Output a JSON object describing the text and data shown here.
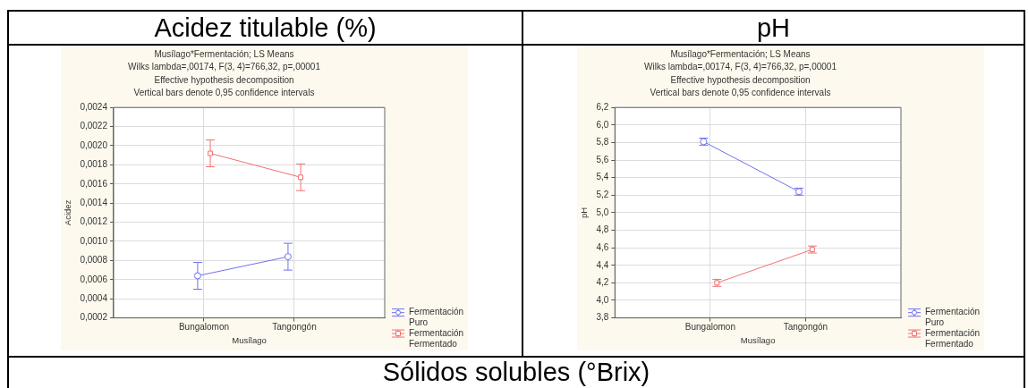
{
  "chart_data": [
    {
      "type": "line",
      "title": "Acidez titulable (%)",
      "subtitle": "Musílago*Fermentación; LS Means\nWilks lambda=,00174, F(3, 4)=766,32, p=,00001\nEffective hypothesis decomposition\nVertical bars denote 0,95 confidence intervals",
      "xlabel": "Musílago",
      "ylabel": "Acidez",
      "categories": [
        "Bungalomon",
        "Tangongón"
      ],
      "series": [
        {
          "name": "Fermentación Puro",
          "color": "#7070f2",
          "marker": "circle",
          "values": [
            0.00064,
            0.00084
          ],
          "errors": [
            0.00014,
            0.00014
          ]
        },
        {
          "name": "Fermentación Fermentado",
          "color": "#f27070",
          "marker": "square",
          "values": [
            0.00192,
            0.00167
          ],
          "errors": [
            0.00014,
            0.00014
          ]
        }
      ],
      "ylim": [
        0.0002,
        0.0024
      ],
      "yticks": [
        {
          "value": 0.0002,
          "label": "0,0002"
        },
        {
          "value": 0.0004,
          "label": "0,0004"
        },
        {
          "value": 0.0006,
          "label": "0,0006"
        },
        {
          "value": 0.0008,
          "label": "0,0008"
        },
        {
          "value": 0.001,
          "label": "0,0010"
        },
        {
          "value": 0.0012,
          "label": "0,0012"
        },
        {
          "value": 0.0014,
          "label": "0,0014"
        },
        {
          "value": 0.0016,
          "label": "0,0016"
        },
        {
          "value": 0.0018,
          "label": "0,0018"
        },
        {
          "value": 0.002,
          "label": "0,0020"
        },
        {
          "value": 0.0022,
          "label": "0,0022"
        },
        {
          "value": 0.0024,
          "label": "0,0024"
        }
      ],
      "grid": true,
      "legend": "bottom right"
    },
    {
      "type": "line",
      "title": "pH",
      "subtitle": "Musílago*Fermentación; LS Means\nWilks lambda=,00174, F(3, 4)=766,32, p=,00001\nEffective hypothesis decomposition\nVertical bars denote 0,95 confidence intervals",
      "xlabel": "Musílago",
      "ylabel": "pH",
      "categories": [
        "Bungalomon",
        "Tangongón"
      ],
      "series": [
        {
          "name": "Fermentación Puro",
          "color": "#7070f2",
          "marker": "circle",
          "values": [
            5.81,
            5.24
          ],
          "errors": [
            0.04,
            0.04
          ]
        },
        {
          "name": "Fermentación Fermentado",
          "color": "#f27070",
          "marker": "square",
          "values": [
            4.2,
            4.58
          ],
          "errors": [
            0.04,
            0.04
          ]
        }
      ],
      "ylim": [
        3.8,
        6.2
      ],
      "yticks": [
        {
          "value": 3.8,
          "label": "3,8"
        },
        {
          "value": 4.0,
          "label": "4,0"
        },
        {
          "value": 4.2,
          "label": "4,2"
        },
        {
          "value": 4.4,
          "label": "4,4"
        },
        {
          "value": 4.6,
          "label": "4,6"
        },
        {
          "value": 4.8,
          "label": "4,8"
        },
        {
          "value": 5.0,
          "label": "5,0"
        },
        {
          "value": 5.2,
          "label": "5,2"
        },
        {
          "value": 5.4,
          "label": "5,4"
        },
        {
          "value": 5.6,
          "label": "5,6"
        },
        {
          "value": 5.8,
          "label": "5,8"
        },
        {
          "value": 6.0,
          "label": "6,0"
        },
        {
          "value": 6.2,
          "label": "6,2"
        }
      ],
      "grid": true,
      "legend": "bottom right"
    },
    {
      "type": "other",
      "title": "Sólidos solubles (°Brix)"
    }
  ]
}
